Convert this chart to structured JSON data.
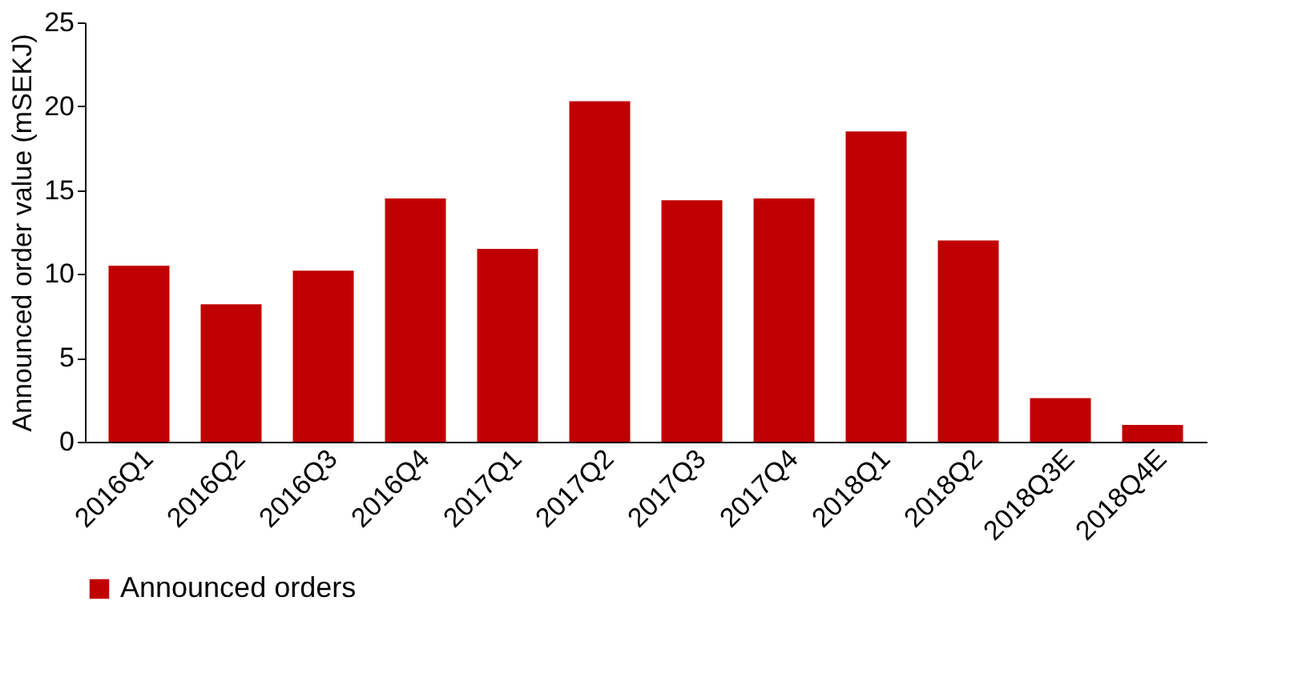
{
  "chart_data": {
    "type": "bar",
    "ylabel": "Announced order value (mSEKJ)",
    "categories": [
      "2016Q1",
      "2016Q2",
      "2016Q3",
      "2016Q4",
      "2017Q1",
      "2017Q2",
      "2017Q3",
      "2017Q4",
      "2018Q1",
      "2018Q2",
      "2018Q3E",
      "2018Q4E"
    ],
    "series": [
      {
        "name": "Announced orders",
        "color": "#c00000",
        "values": [
          10.5,
          8.2,
          10.2,
          14.5,
          11.5,
          20.3,
          14.4,
          14.5,
          18.5,
          12.0,
          2.6,
          1.0
        ]
      }
    ],
    "ylim": [
      0,
      25
    ],
    "yticks": [
      0,
      5,
      10,
      15,
      20,
      25
    ],
    "grid": false,
    "legend": "bottom"
  }
}
